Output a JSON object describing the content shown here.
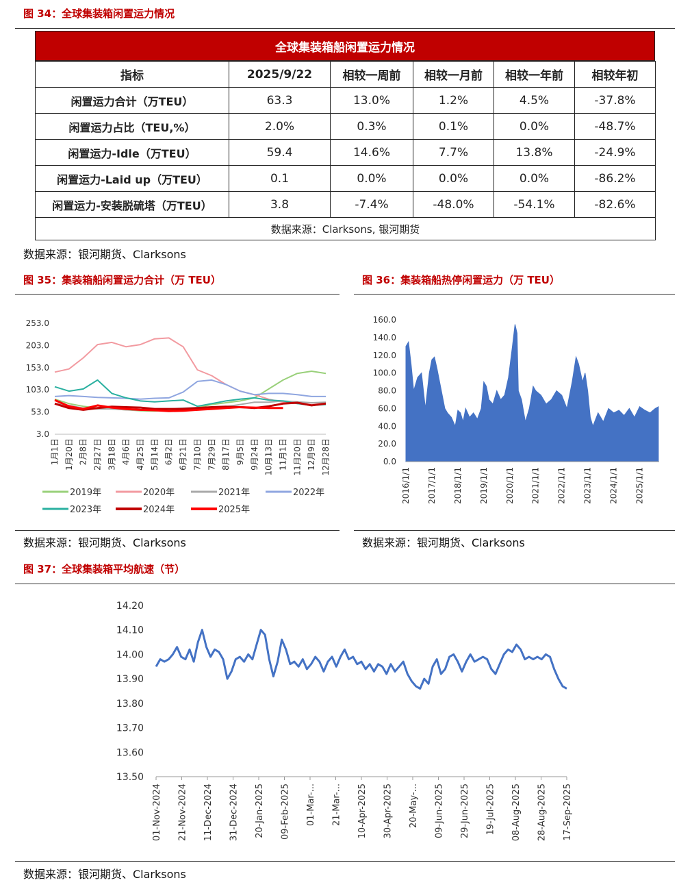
{
  "figures": {
    "fig34_title": "图 34：全球集装箱闲置运力情况",
    "fig35_title": "图 35：集装箱船闲置运力合计（万 TEU）",
    "fig36_title": "图 36：集装箱船热停闲置运力（万 TEU）",
    "fig37_title": "图 37：全球集装箱平均航速（节）",
    "source_34": "数据来源：银河期货、Clarksons",
    "source_35": "数据来源：银河期货、Clarksons",
    "source_36": "数据来源：银河期货、Clarksons",
    "source_37": "数据来源：银河期货、Clarksons"
  },
  "table": {
    "title": "全球集装箱船闲置运力情况",
    "headers": [
      "指标",
      "2025/9/22",
      "相较一周前",
      "相较一月前",
      "相较一年前",
      "相较年初"
    ],
    "rows": [
      [
        "闲置运力合计（万TEU）",
        "63.3",
        "13.0%",
        "1.2%",
        "4.5%",
        "-37.8%"
      ],
      [
        "闲置运力占比（TEU,%）",
        "2.0%",
        "0.3%",
        "0.1%",
        "0.0%",
        "-48.7%"
      ],
      [
        "闲置运力-Idle（万TEU）",
        "59.4",
        "14.6%",
        "7.7%",
        "13.8%",
        "-24.9%"
      ],
      [
        "闲置运力-Laid up（万TEU）",
        "0.1",
        "0.0%",
        "0.0%",
        "0.0%",
        "-86.2%"
      ],
      [
        "闲置运力-安装脱硫塔（万TEU）",
        "3.8",
        "-7.4%",
        "-48.0%",
        "-54.1%",
        "-82.6%"
      ]
    ],
    "source": "数据来源：Clarksons, 银河期货"
  },
  "chart_data": [
    {
      "id": "fig35",
      "type": "line",
      "ylim": [
        3.0,
        253.0
      ],
      "yticks": [
        "253.0",
        "203.0",
        "153.0",
        "103.0",
        "53.0",
        "3.0"
      ],
      "categories": [
        "1月1日",
        "1月20日",
        "2月8日",
        "2月27日",
        "3月18日",
        "4月6日",
        "4月25日",
        "5月14日",
        "6月2日",
        "6月21日",
        "7月10日",
        "7月29日",
        "8月17日",
        "9月5日",
        "9月24日",
        "10月13日",
        "11月1日",
        "11月20日",
        "12月9日",
        "12月28日"
      ],
      "series": [
        {
          "name": "2019年",
          "color": "#99d07a",
          "values": [
            82,
            72,
            66,
            62,
            60,
            58,
            56,
            55,
            58,
            60,
            63,
            70,
            74,
            78,
            85,
            105,
            125,
            140,
            145,
            140
          ]
        },
        {
          "name": "2020年",
          "color": "#f29aa0",
          "values": [
            143,
            150,
            175,
            205,
            210,
            200,
            205,
            218,
            220,
            200,
            148,
            135,
            115,
            100,
            92,
            82,
            75,
            72,
            70,
            72
          ]
        },
        {
          "name": "2021年",
          "color": "#a8a8a8",
          "values": [
            72,
            68,
            62,
            60,
            60,
            58,
            57,
            58,
            60,
            62,
            63,
            62,
            65,
            70,
            75,
            75,
            78,
            76,
            74,
            75
          ]
        },
        {
          "name": "2022年",
          "color": "#8fa6e0",
          "values": [
            88,
            90,
            88,
            86,
            85,
            84,
            82,
            84,
            85,
            98,
            122,
            125,
            115,
            100,
            92,
            95,
            95,
            92,
            88,
            88
          ]
        },
        {
          "name": "2023年",
          "color": "#2ab0a0",
          "values": [
            110,
            100,
            105,
            125,
            95,
            85,
            78,
            76,
            78,
            80,
            66,
            72,
            78,
            82,
            85,
            80,
            78,
            72,
            68,
            70
          ]
        },
        {
          "name": "2024年",
          "color": "#c00000",
          "values": [
            72,
            62,
            58,
            62,
            65,
            64,
            63,
            60,
            60,
            60,
            62,
            64,
            65,
            64,
            62,
            66,
            72,
            74,
            68,
            72
          ]
        },
        {
          "name": "2025年",
          "color": "#ff0000",
          "values": [
            80,
            66,
            60,
            68,
            63,
            60,
            58,
            57,
            55,
            56,
            58,
            60,
            62,
            64,
            63,
            62,
            62,
            null,
            null,
            null
          ]
        }
      ]
    },
    {
      "id": "fig36",
      "type": "area",
      "color": "#4472c4",
      "ylim": [
        0.0,
        160.0
      ],
      "yticks": [
        "160.0",
        "140.0",
        "120.0",
        "100.0",
        "80.0",
        "60.0",
        "40.0",
        "20.0",
        "0.0"
      ],
      "xticks": [
        "2016/1/1",
        "2017/1/1",
        "2018/1/1",
        "2019/1/1",
        "2020/1/1",
        "2021/1/1",
        "2022/1/1",
        "2023/1/1",
        "2024/1/1",
        "2025/1/1"
      ],
      "x": [
        2016.0,
        2016.1,
        2016.2,
        2016.3,
        2016.45,
        2016.6,
        2016.75,
        2016.9,
        2017.0,
        2017.1,
        2017.2,
        2017.3,
        2017.4,
        2017.5,
        2017.6,
        2017.75,
        2017.9,
        2018.0,
        2018.1,
        2018.2,
        2018.3,
        2018.45,
        2018.6,
        2018.75,
        2018.9,
        2019.0,
        2019.1,
        2019.2,
        2019.35,
        2019.5,
        2019.65,
        2019.8,
        2019.95,
        2020.1,
        2020.2,
        2020.28,
        2020.33,
        2020.45,
        2020.6,
        2020.75,
        2020.9,
        2021.0,
        2021.2,
        2021.4,
        2021.6,
        2021.8,
        2022.0,
        2022.2,
        2022.4,
        2022.55,
        2022.65,
        2022.8,
        2022.9,
        2023.0,
        2023.1,
        2023.2,
        2023.4,
        2023.6,
        2023.8,
        2024.0,
        2024.2,
        2024.4,
        2024.6,
        2024.8,
        2025.0,
        2025.2,
        2025.4,
        2025.6,
        2025.72
      ],
      "values": [
        130,
        135,
        110,
        80,
        95,
        100,
        60,
        100,
        115,
        118,
        105,
        90,
        75,
        60,
        55,
        50,
        40,
        58,
        55,
        45,
        60,
        50,
        55,
        48,
        60,
        90,
        85,
        70,
        65,
        80,
        70,
        75,
        95,
        130,
        155,
        145,
        80,
        70,
        45,
        60,
        85,
        80,
        75,
        65,
        70,
        80,
        75,
        60,
        90,
        118,
        110,
        90,
        100,
        80,
        50,
        40,
        55,
        45,
        60,
        55,
        58,
        52,
        60,
        50,
        62,
        58,
        55,
        60,
        62
      ]
    },
    {
      "id": "fig37",
      "type": "line",
      "color": "#4472c4",
      "ylim": [
        13.5,
        14.2
      ],
      "yticks": [
        "14.20",
        "14.10",
        "14.00",
        "13.90",
        "13.80",
        "13.70",
        "13.60",
        "13.50"
      ],
      "xticks": [
        "01-Nov-2024",
        "21-Nov-2024",
        "11-Dec-2024",
        "31-Dec-2024",
        "20-Jan-2025",
        "09-Feb-2025",
        "01-Mar-...",
        "21-Mar-...",
        "10-Apr-2025",
        "30-Apr-2025",
        "20-May-...",
        "09-Jun-2025",
        "29-Jun-2025",
        "19-Jul-2025",
        "08-Aug-2025",
        "28-Aug-2025",
        "17-Sep-2025"
      ],
      "x": [
        0,
        3,
        6,
        9,
        12,
        15,
        18,
        21,
        24,
        27,
        30,
        33,
        36,
        39,
        42,
        45,
        48,
        51,
        54,
        57,
        60,
        63,
        66,
        69,
        72,
        75,
        78,
        81,
        84,
        87,
        90,
        93,
        96,
        99,
        102,
        105,
        108,
        111,
        114,
        117,
        120,
        123,
        126,
        129,
        132,
        135,
        138,
        141,
        144,
        147,
        150,
        153,
        156,
        159,
        162,
        165,
        168,
        171,
        174,
        177,
        180,
        183,
        186,
        189,
        192,
        195,
        198,
        201,
        204,
        207,
        210,
        213,
        216,
        219,
        222,
        225,
        228,
        231,
        234,
        237,
        240,
        243,
        246,
        249,
        252,
        255,
        258,
        261,
        264,
        267,
        270,
        273,
        276,
        279,
        282,
        285,
        288,
        291,
        294,
        297,
        300,
        303,
        306,
        309,
        312,
        315,
        318,
        321,
        324,
        327
      ],
      "values": [
        13.95,
        13.98,
        13.97,
        13.98,
        14.0,
        14.03,
        13.99,
        13.98,
        14.02,
        13.97,
        14.05,
        14.1,
        14.03,
        13.99,
        14.02,
        14.01,
        13.98,
        13.9,
        13.93,
        13.98,
        13.99,
        13.97,
        14.0,
        13.98,
        14.04,
        14.1,
        14.08,
        13.98,
        13.91,
        13.97,
        14.06,
        14.02,
        13.96,
        13.97,
        13.95,
        13.98,
        13.94,
        13.96,
        13.99,
        13.97,
        13.93,
        13.97,
        13.99,
        13.95,
        13.99,
        14.02,
        13.98,
        13.99,
        13.96,
        13.97,
        13.94,
        13.96,
        13.93,
        13.96,
        13.95,
        13.92,
        13.96,
        13.93,
        13.95,
        13.97,
        13.92,
        13.89,
        13.87,
        13.86,
        13.9,
        13.88,
        13.95,
        13.98,
        13.92,
        13.94,
        13.99,
        14.0,
        13.97,
        13.93,
        13.97,
        14.0,
        13.97,
        13.98,
        13.99,
        13.98,
        13.94,
        13.92,
        13.96,
        14.0,
        14.02,
        14.01,
        14.04,
        14.02,
        13.98,
        13.99,
        13.98,
        13.99,
        13.98,
        14.0,
        13.99,
        13.94,
        13.9,
        13.87,
        13.86,
        13.86,
        13.86,
        13.86,
        13.86,
        13.86,
        13.86,
        13.86,
        13.86,
        13.86,
        13.86,
        13.86
      ]
    }
  ]
}
